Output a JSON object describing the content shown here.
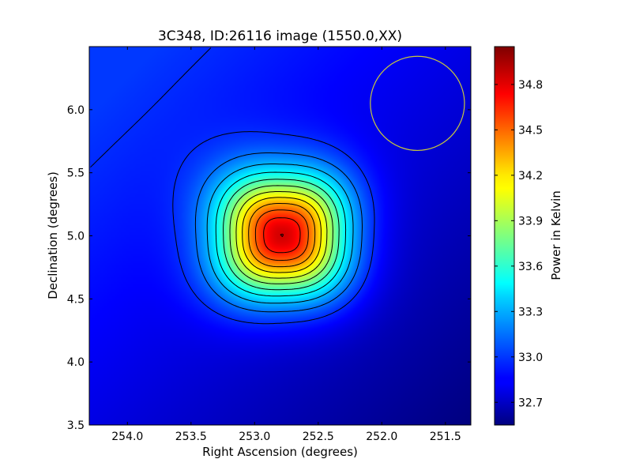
{
  "chart_data": {
    "type": "heatmap",
    "title": "3C348, ID:26116 image (1550.0,XX)",
    "xlabel": "Right Ascension (degrees)",
    "ylabel": "Declination (degrees)",
    "xlim": [
      254.3,
      251.3
    ],
    "ylim": [
      3.5,
      6.5
    ],
    "x_inverted": true,
    "xticks": [
      "254.0",
      "253.5",
      "253.0",
      "252.5",
      "252.0",
      "251.5"
    ],
    "xtick_values": [
      254.0,
      253.5,
      253.0,
      252.5,
      252.0,
      251.5
    ],
    "yticks": [
      "3.5",
      "4.0",
      "4.5",
      "5.0",
      "5.5",
      "6.0"
    ],
    "ytick_values": [
      3.5,
      4.0,
      4.5,
      5.0,
      5.5,
      6.0
    ],
    "source": {
      "ra": 252.78,
      "dec": 5.0,
      "peak": 35.05
    },
    "background_range": [
      32.55,
      33.0
    ],
    "beam_circle": {
      "ra": 251.72,
      "dec": 6.05,
      "radius_deg": 0.37,
      "color": "#c8c83c"
    },
    "colorbar": {
      "label": "Power in Kelvin",
      "range": [
        32.55,
        35.05
      ],
      "ticks": [
        "32.7",
        "33.0",
        "33.3",
        "33.6",
        "33.9",
        "34.2",
        "34.5",
        "34.8"
      ],
      "tick_values": [
        32.7,
        33.0,
        33.3,
        33.6,
        33.9,
        34.2,
        34.5,
        34.8
      ],
      "colormap": "jet"
    },
    "contours": {
      "color": "#000000",
      "count": 12
    },
    "grid": false
  }
}
